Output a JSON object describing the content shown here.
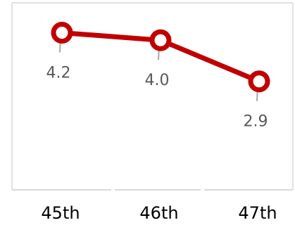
{
  "chart_data": {
    "type": "line",
    "categories": [
      "45th",
      "46th",
      "47th"
    ],
    "series": [
      {
        "values": [
          4.2,
          4.0,
          2.9
        ],
        "data_labels": [
          "4.2",
          "4.0",
          "2.9"
        ],
        "color": "#C00000"
      }
    ],
    "title": "",
    "xlabel": "",
    "ylabel": "",
    "ylim": [
      0,
      5
    ],
    "grid": false,
    "legend": "none",
    "colors": {
      "line": "#C00000",
      "marker_fill": "#ffffff",
      "frame": "#d9d9d9",
      "leader": "#a6a6a6"
    }
  }
}
